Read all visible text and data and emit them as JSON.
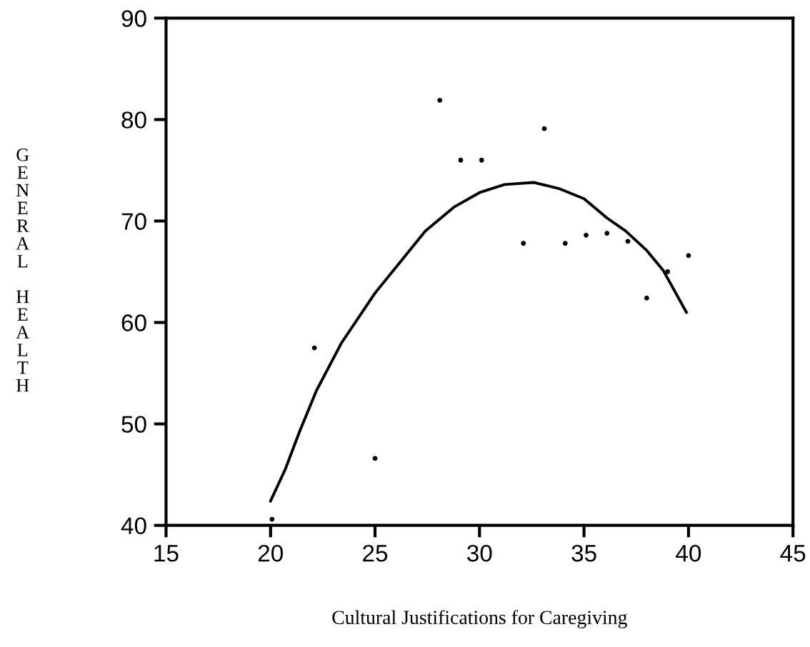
{
  "chart_data": {
    "type": "scatter",
    "xlabel": "Cultural Justifications for Caregiving",
    "ylabel": "GENERAL HEALTH",
    "xlim": [
      15,
      45
    ],
    "ylim": [
      40,
      90
    ],
    "xticks": [
      15,
      20,
      25,
      30,
      35,
      40,
      45
    ],
    "yticks": [
      40,
      50,
      60,
      70,
      80,
      90
    ],
    "grid": false,
    "legend": false,
    "marker": "circle",
    "series": [
      {
        "color": "#000000",
        "x": [
          20.07,
          22.1,
          25.0,
          28.1,
          29.1,
          30.1,
          33.1,
          32.1,
          34.1,
          35.1,
          36.1,
          37.1,
          38.0,
          39.0,
          40.0
        ],
        "values": [
          40.6,
          57.5,
          46.6,
          81.9,
          76.0,
          76.0,
          79.1,
          67.8,
          67.8,
          68.6,
          68.8,
          68.0,
          62.4,
          65.0,
          66.6
        ]
      },
      {
        "type": "line",
        "color": "#000000",
        "marker": "none",
        "line_style": "solid",
        "x": [
          20.0,
          20.7,
          21.4,
          22.2,
          23.4,
          25.0,
          26.3,
          27.4,
          28.8,
          30.0,
          31.2,
          32.6,
          33.8,
          35.0,
          36.1,
          37.0,
          38.0,
          38.8,
          39.9
        ],
        "values": [
          42.4,
          45.5,
          49.3,
          53.3,
          58.0,
          62.9,
          66.2,
          69.0,
          71.4,
          72.8,
          73.6,
          73.8,
          73.2,
          72.2,
          70.3,
          69.0,
          67.1,
          65.1,
          61.0
        ]
      }
    ]
  }
}
